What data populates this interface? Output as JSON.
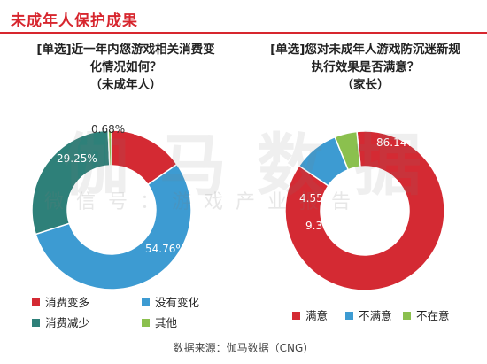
{
  "header": {
    "title": "未成年人保护成果"
  },
  "watermark": {
    "big": "伽马数据",
    "small": "微信号：游戏产业报告"
  },
  "source": "数据来源：伽马数据（CNG）",
  "chart_data": [
    {
      "type": "pie",
      "donut": true,
      "title_lines": [
        "[单选]近一年内您游戏相关消费变",
        "化情况如何？",
        "（未成年人）"
      ],
      "categories": [
        "消费变多",
        "没有变化",
        "消费减少",
        "其他"
      ],
      "values": [
        15.31,
        54.76,
        29.25,
        0.68
      ],
      "labels": [
        "15.31%",
        "54.76%",
        "29.25%",
        "0.68%"
      ],
      "colors": [
        "#d42a33",
        "#3d9bd2",
        "#2e8079",
        "#8bc04e"
      ],
      "legend_position": "bottom"
    },
    {
      "type": "pie",
      "donut": true,
      "title_lines": [
        "[单选]您对未成年人游戏防沉迷新规",
        "执行效果是否满意？",
        "（家长）"
      ],
      "categories": [
        "满意",
        "不满意",
        "不在意"
      ],
      "values": [
        86.14,
        9.31,
        4.55
      ],
      "labels": [
        "86.14%",
        "9.31%",
        "4.55%"
      ],
      "colors": [
        "#d42a33",
        "#3d9bd2",
        "#8bc04e"
      ],
      "legend_position": "bottom"
    }
  ]
}
